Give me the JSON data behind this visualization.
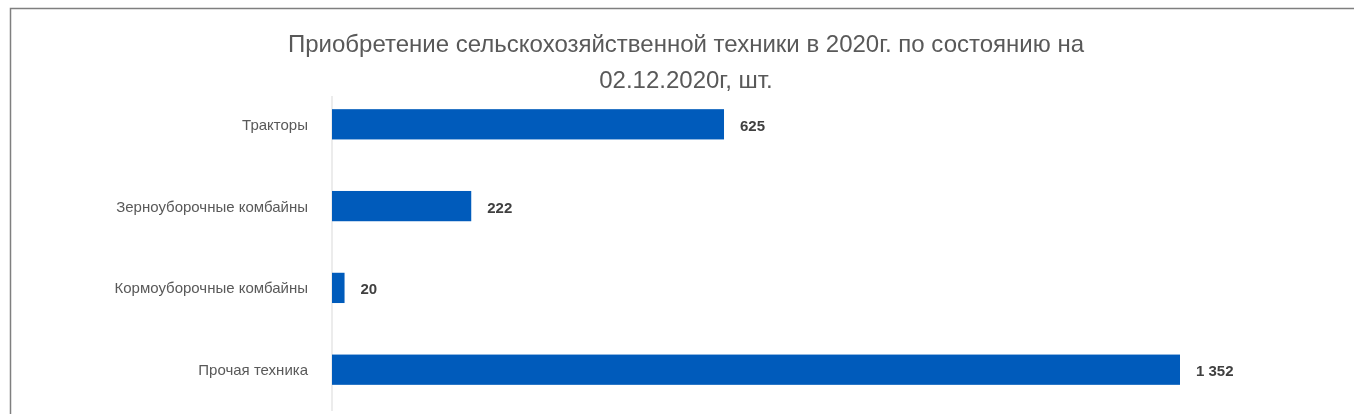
{
  "chart_data": {
    "type": "bar",
    "orientation": "horizontal",
    "title": "Приобретение сельскохозяйственной техники в 2020г. по состоянию на 02.12.2020г, шт.",
    "categories": [
      "Тракторы",
      "Зерноуборочные комбайны",
      "Кормоуборочные комбайны",
      "Прочая техника"
    ],
    "values": [
      625,
      222,
      20,
      1352
    ],
    "value_labels": [
      "625",
      "222",
      "20",
      "1 352"
    ],
    "color": "#005bbb"
  }
}
